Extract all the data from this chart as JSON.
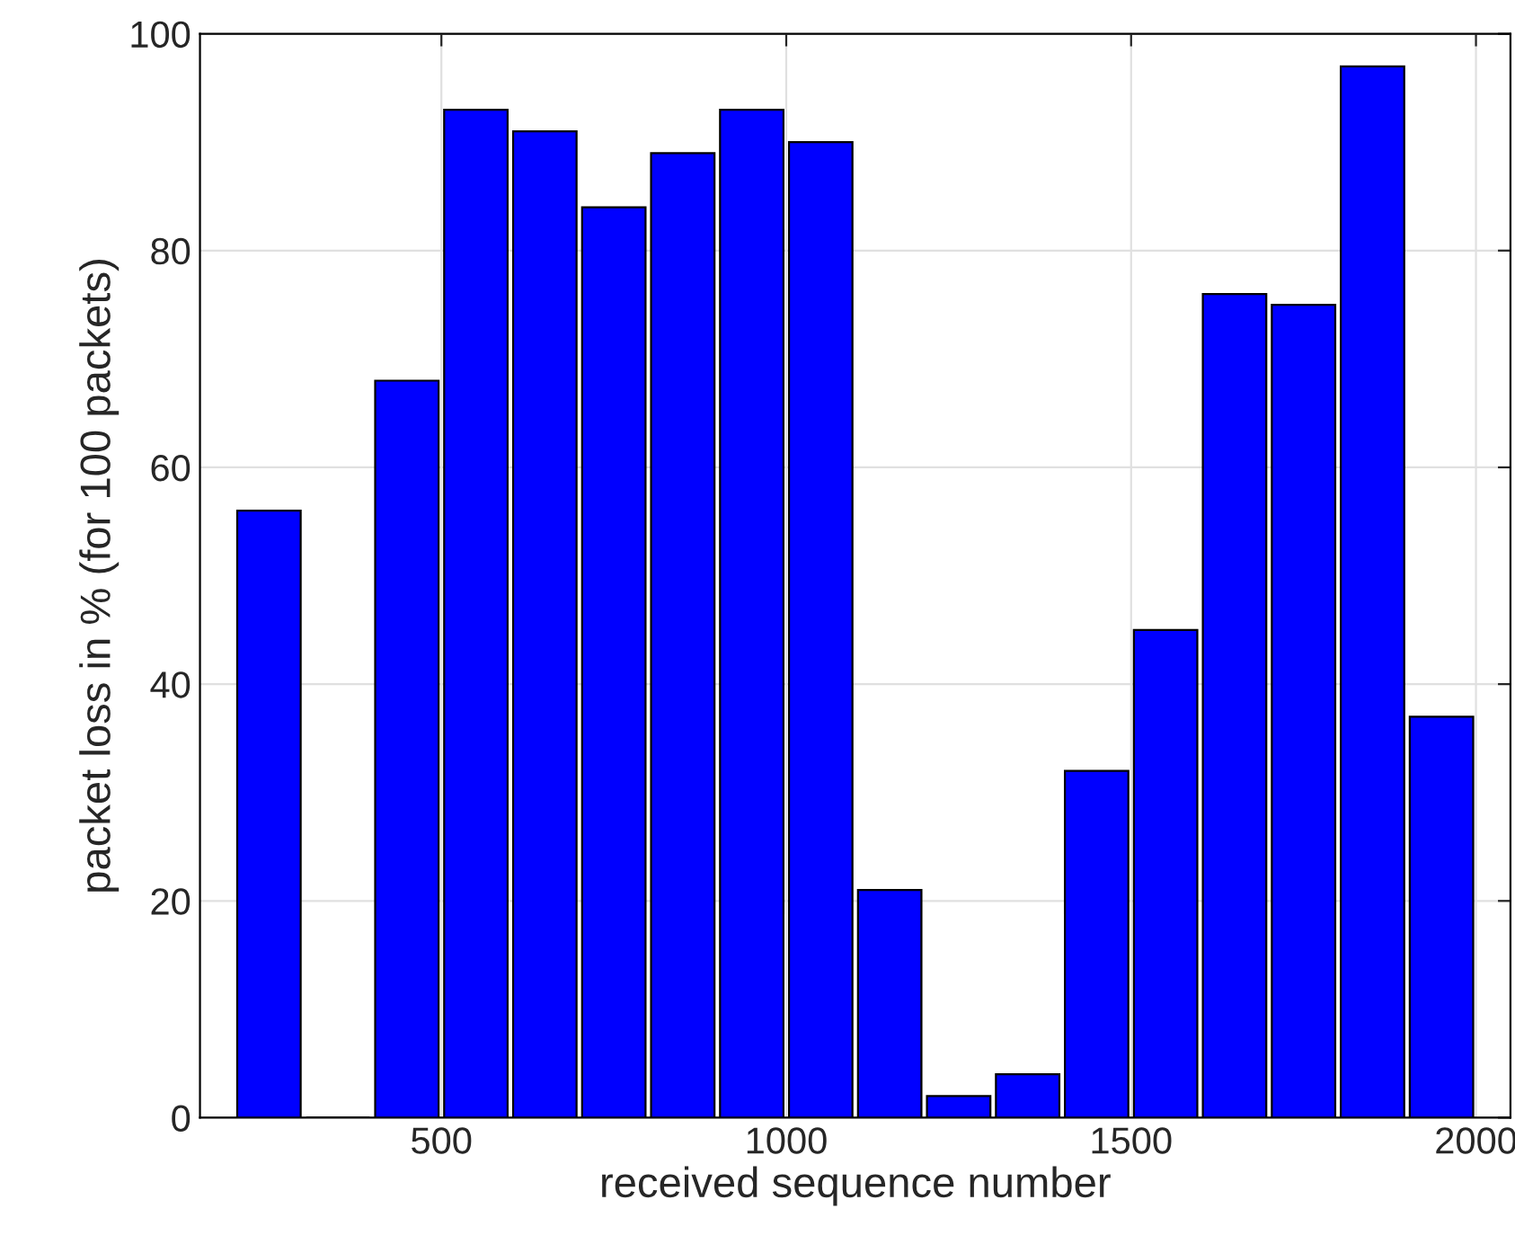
{
  "chart_data": {
    "type": "bar",
    "xlabel": "received sequence number",
    "ylabel": "packet loss in % (for 100 packets)",
    "x": [
      250,
      350,
      450,
      550,
      650,
      750,
      850,
      950,
      1050,
      1150,
      1250,
      1350,
      1450,
      1550,
      1650,
      1750,
      1850,
      1950
    ],
    "values": [
      56,
      0,
      68,
      93,
      91,
      84,
      89,
      93,
      90,
      21,
      2,
      4,
      32,
      45,
      76,
      75,
      97,
      37
    ],
    "color": "#0000ff",
    "xlim": [
      150,
      2050
    ],
    "xticks": [
      500,
      1000,
      1500,
      2000
    ],
    "ylim": [
      0,
      100
    ],
    "yticks": [
      0,
      20,
      40,
      60,
      80,
      100
    ],
    "grid": true
  }
}
